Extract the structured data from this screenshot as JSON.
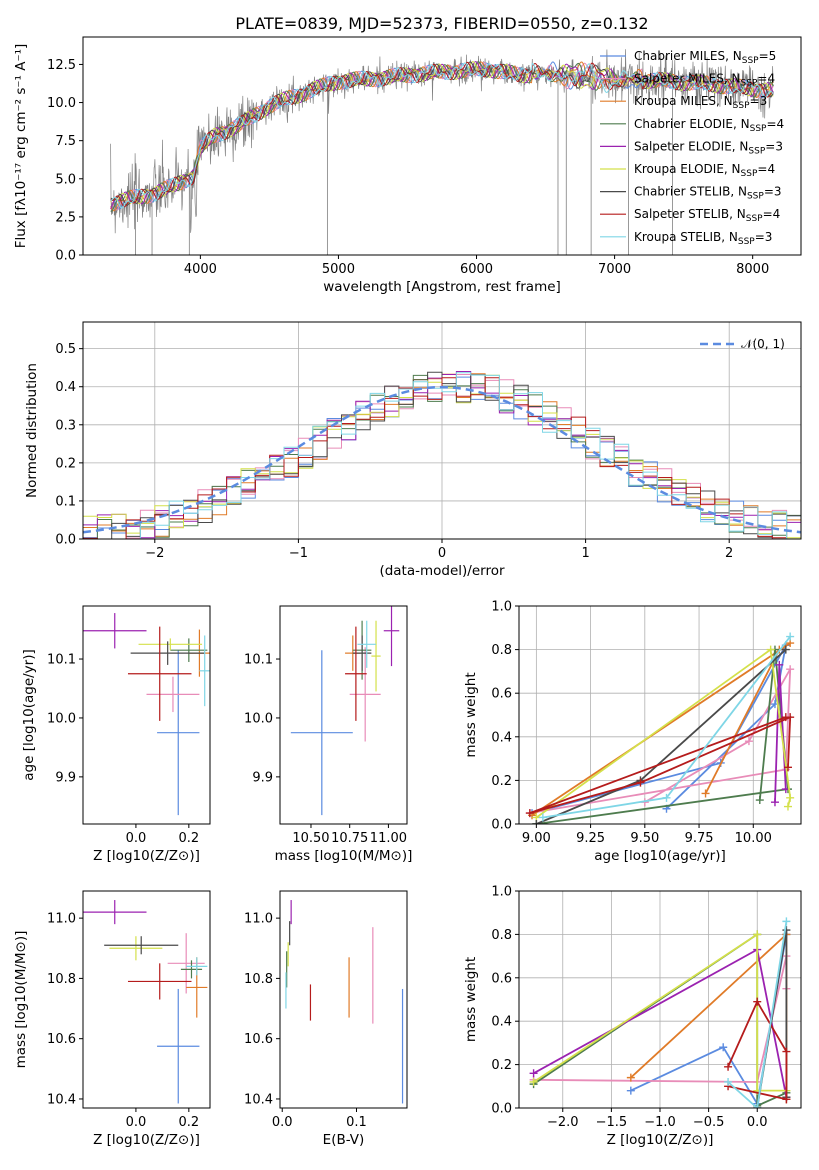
{
  "chart_data": [
    {
      "type": "line",
      "title": "PLATE=0839, MJD=52373, FIBERID=0550, z=0.132",
      "xlabel": "wavelength [Angstrom, rest frame]",
      "ylabel": "Flux [fλ10⁻¹⁷ erg cm⁻² s⁻¹ A⁻¹]",
      "xlim": [
        3150,
        8350
      ],
      "ylim": [
        0,
        14.3
      ],
      "xticks": [
        4000,
        5000,
        6000,
        7000,
        8000
      ],
      "yticks": [
        0.0,
        2.5,
        5.0,
        7.5,
        10.0,
        12.5
      ],
      "grid": false,
      "legend": "top-right",
      "data_color": "#808080",
      "series": [
        {
          "name": "Chabrier MILES, N_SSP=5",
          "color": "#5b8be0"
        },
        {
          "name": "Salpeter MILES, N_SSP=4",
          "color": "#e88cb8"
        },
        {
          "name": "Kroupa MILES, N_SSP=3",
          "color": "#e07b28"
        },
        {
          "name": "Chabrier ELODIE, N_SSP=4",
          "color": "#4e7c4e"
        },
        {
          "name": "Salpeter ELODIE, N_SSP=3",
          "color": "#9b22b0"
        },
        {
          "name": "Kroupa ELODIE, N_SSP=4",
          "color": "#d4e04a"
        },
        {
          "name": "Chabrier STELIB, N_SSP=3",
          "color": "#4a4a4a"
        },
        {
          "name": "Salpeter STELIB, N_SSP=4",
          "color": "#b51c1c"
        },
        {
          "name": "Kroupa STELIB, N_SSP=3",
          "color": "#7fd6e6"
        }
      ],
      "continuum": {
        "x": [
          3350,
          3500,
          3650,
          3800,
          3950,
          4000,
          4100,
          4300,
          4500,
          4800,
          5000,
          5300,
          5600,
          5900,
          6100,
          6300,
          6500,
          6700,
          6900,
          7100,
          7400,
          7700,
          8000,
          8150
        ],
        "y": [
          3.4,
          3.7,
          4.0,
          4.5,
          5.2,
          7.0,
          7.8,
          8.6,
          9.8,
          10.8,
          11.4,
          11.6,
          11.9,
          12.1,
          12.2,
          11.8,
          11.9,
          11.8,
          11.6,
          11.5,
          11.4,
          11.2,
          10.9,
          10.8
        ]
      },
      "dips": [
        3530,
        3650,
        3920,
        4920,
        6590,
        6650,
        6830,
        7100,
        7420
      ]
    },
    {
      "type": "bar",
      "ylabel": "Normed distribution",
      "xlabel": "(data-model)/error",
      "xlim": [
        -2.5,
        2.5
      ],
      "ylim": [
        0,
        0.57
      ],
      "xticks": [
        -2,
        -1,
        0,
        1,
        2
      ],
      "yticks": [
        0.0,
        0.1,
        0.2,
        0.3,
        0.4,
        0.5
      ],
      "grid": true,
      "legend": "top-right",
      "reference": {
        "name": "𝒩(0, 1)",
        "mu": 0,
        "sigma": 1,
        "color": "#5b8be0"
      }
    },
    {
      "type": "scatter",
      "xlabel": "Z [log10(Z/Z⊙)]",
      "ylabel": "age  [log10(age/yr)]",
      "xlim": [
        -0.2,
        0.28
      ],
      "ylim": [
        9.82,
        10.19
      ],
      "xticks": [
        0.0,
        0.2
      ],
      "yticks": [
        9.9,
        10.0,
        10.1
      ],
      "points": [
        {
          "x": 0.16,
          "y": 9.975,
          "xe": 0.08,
          "ye": 0.14,
          "c": "#5b8be0"
        },
        {
          "x": 0.14,
          "y": 10.04,
          "xe": 0.1,
          "ye": 0.03,
          "c": "#e88cb8"
        },
        {
          "x": 0.24,
          "y": 10.11,
          "xe": 0.04,
          "ye": 0.04,
          "c": "#e07b28"
        },
        {
          "x": 0.2,
          "y": 10.115,
          "xe": 0.07,
          "ye": 0.02,
          "c": "#4e7c4e"
        },
        {
          "x": -0.08,
          "y": 10.148,
          "xe": 0.12,
          "ye": 0.03,
          "c": "#9b22b0"
        },
        {
          "x": 0.13,
          "y": 10.125,
          "xe": 0.12,
          "ye": 0.01,
          "c": "#d4e04a"
        },
        {
          "x": 0.12,
          "y": 10.11,
          "xe": 0.14,
          "ye": 0.02,
          "c": "#4a4a4a"
        },
        {
          "x": 0.09,
          "y": 10.075,
          "xe": 0.12,
          "ye": 0.08,
          "c": "#b51c1c"
        },
        {
          "x": 0.26,
          "y": 10.08,
          "xe": 0.02,
          "ye": 0.06,
          "c": "#7fd6e6"
        }
      ]
    },
    {
      "type": "scatter",
      "xlabel": "mass [log10(M/M⊙)]",
      "ylabel": "",
      "xlim": [
        10.3,
        11.12
      ],
      "ylim": [
        9.82,
        10.19
      ],
      "xticks": [
        10.5,
        10.75,
        11.0
      ],
      "yticks": [
        9.9,
        10.0,
        10.1
      ],
      "points": [
        {
          "x": 10.57,
          "y": 9.975,
          "xe": 0.2,
          "ye": 0.14,
          "c": "#5b8be0"
        },
        {
          "x": 10.85,
          "y": 10.04,
          "xe": 0.1,
          "ye": 0.08,
          "c": "#e88cb8"
        },
        {
          "x": 10.77,
          "y": 10.11,
          "xe": 0.05,
          "ye": 0.03,
          "c": "#e07b28"
        },
        {
          "x": 10.83,
          "y": 10.115,
          "xe": 0.06,
          "ye": 0.05,
          "c": "#4e7c4e"
        },
        {
          "x": 11.02,
          "y": 10.148,
          "xe": 0.05,
          "ye": 0.06,
          "c": "#9b22b0"
        },
        {
          "x": 10.92,
          "y": 10.105,
          "xe": 0.03,
          "ye": 0.06,
          "c": "#d4e04a"
        },
        {
          "x": 10.83,
          "y": 10.11,
          "xe": 0.06,
          "ye": 0.03,
          "c": "#4a4a4a"
        },
        {
          "x": 10.79,
          "y": 10.075,
          "xe": 0.07,
          "ye": 0.08,
          "c": "#b51c1c"
        },
        {
          "x": 10.86,
          "y": 10.125,
          "xe": 0.06,
          "ye": 0.04,
          "c": "#7fd6e6"
        }
      ]
    },
    {
      "type": "line",
      "xlabel": "age  [log10(age/yr)]",
      "ylabel": "mass weight",
      "xlim": [
        8.92,
        10.22
      ],
      "ylim": [
        0.0,
        1.0
      ],
      "xticks": [
        9.0,
        9.25,
        9.5,
        9.75,
        10.0
      ],
      "yticks": [
        0.0,
        0.2,
        0.4,
        0.6,
        0.8,
        1.0
      ],
      "grid": true,
      "series": [
        {
          "x": [
            9.6,
            10.1,
            10.15,
            9.85,
            8.98
          ],
          "y": [
            0.07,
            0.55,
            0.82,
            0.28,
            0.05
          ],
          "c": "#5b8be0"
        },
        {
          "x": [
            9.5,
            9.98,
            10.17,
            10.15,
            8.97
          ],
          "y": [
            0.1,
            0.38,
            0.71,
            0.25,
            0.05
          ],
          "c": "#e88cb8"
        },
        {
          "x": [
            9.78,
            10.12,
            10.17,
            8.98
          ],
          "y": [
            0.14,
            0.8,
            0.83,
            0.04
          ],
          "c": "#e07b28"
        },
        {
          "x": [
            10.03,
            10.1,
            10.16,
            9.0
          ],
          "y": [
            0.11,
            0.8,
            0.16,
            0.0
          ],
          "c": "#4e7c4e"
        },
        {
          "x": [
            10.1,
            10.12,
            10.15
          ],
          "y": [
            0.1,
            0.73,
            0.16
          ],
          "c": "#9b22b0"
        },
        {
          "x": [
            10.16,
            10.17,
            10.08,
            9.0
          ],
          "y": [
            0.08,
            0.12,
            0.8,
            0.03
          ],
          "c": "#d4e04a"
        },
        {
          "x": [
            10.15,
            9.48,
            9.0
          ],
          "y": [
            0.8,
            0.2,
            0.0
          ],
          "c": "#4a4a4a"
        },
        {
          "x": [
            10.16,
            10.17,
            9.48,
            8.97,
            10.15
          ],
          "y": [
            0.26,
            0.49,
            0.19,
            0.05,
            0.49
          ],
          "c": "#b51c1c"
        },
        {
          "x": [
            10.17,
            9.6,
            9.03
          ],
          "y": [
            0.86,
            0.12,
            0.03
          ],
          "c": "#7fd6e6"
        }
      ]
    },
    {
      "type": "scatter",
      "xlabel": "Z [log10(Z/Z⊙)]",
      "ylabel": "mass [log10(M/M⊙)]",
      "xlim": [
        -0.2,
        0.28
      ],
      "ylim": [
        10.37,
        11.09
      ],
      "xticks": [
        0.0,
        0.2
      ],
      "yticks": [
        10.4,
        10.6,
        10.8,
        11.0
      ],
      "points": [
        {
          "x": 0.16,
          "y": 10.575,
          "xe": 0.08,
          "ye": 0.19,
          "c": "#5b8be0"
        },
        {
          "x": 0.19,
          "y": 10.85,
          "xe": 0.07,
          "ye": 0.1,
          "c": "#e88cb8"
        },
        {
          "x": 0.23,
          "y": 10.77,
          "xe": 0.04,
          "ye": 0.1,
          "c": "#e07b28"
        },
        {
          "x": 0.21,
          "y": 10.83,
          "xe": 0.04,
          "ye": 0.03,
          "c": "#4e7c4e"
        },
        {
          "x": -0.08,
          "y": 11.02,
          "xe": 0.12,
          "ye": 0.04,
          "c": "#9b22b0"
        },
        {
          "x": 0.0,
          "y": 10.9,
          "xe": 0.1,
          "ye": 0.04,
          "c": "#d4e04a"
        },
        {
          "x": 0.02,
          "y": 10.91,
          "xe": 0.14,
          "ye": 0.03,
          "c": "#4a4a4a"
        },
        {
          "x": 0.09,
          "y": 10.79,
          "xe": 0.12,
          "ye": 0.06,
          "c": "#b51c1c"
        },
        {
          "x": 0.23,
          "y": 10.84,
          "xe": 0.04,
          "ye": 0.03,
          "c": "#7fd6e6"
        }
      ]
    },
    {
      "type": "scatter",
      "xlabel": "E(B-V)",
      "ylabel": "",
      "xlim": [
        -0.003,
        0.168
      ],
      "ylim": [
        10.37,
        11.09
      ],
      "xticks": [
        0.0,
        0.1
      ],
      "yticks": [
        10.4,
        10.6,
        10.8,
        11.0
      ],
      "points": [
        {
          "x": 0.162,
          "y": 10.575,
          "ye": 0.19,
          "c": "#5b8be0"
        },
        {
          "x": 0.122,
          "y": 10.81,
          "ye": 0.16,
          "c": "#e88cb8"
        },
        {
          "x": 0.09,
          "y": 10.77,
          "ye": 0.1,
          "c": "#e07b28"
        },
        {
          "x": 0.006,
          "y": 10.83,
          "ye": 0.06,
          "c": "#4e7c4e"
        },
        {
          "x": 0.012,
          "y": 11.02,
          "ye": 0.04,
          "c": "#9b22b0"
        },
        {
          "x": 0.008,
          "y": 10.88,
          "ye": 0.04,
          "c": "#d4e04a"
        },
        {
          "x": 0.01,
          "y": 10.95,
          "ye": 0.04,
          "c": "#4a4a4a"
        },
        {
          "x": 0.038,
          "y": 10.72,
          "ye": 0.06,
          "c": "#b51c1c"
        },
        {
          "x": 0.005,
          "y": 10.76,
          "ye": 0.06,
          "c": "#7fd6e6"
        }
      ]
    },
    {
      "type": "line",
      "xlabel": "Z [log10(Z/Z⊙)]",
      "ylabel": "mass weight",
      "xlim": [
        -2.45,
        0.45
      ],
      "ylim": [
        0.0,
        1.0
      ],
      "xticks": [
        -2.0,
        -1.5,
        -1.0,
        -0.5,
        0.0
      ],
      "yticks": [
        0.0,
        0.2,
        0.4,
        0.6,
        0.8,
        1.0
      ],
      "grid": true,
      "series": [
        {
          "x": [
            -1.3,
            -0.35,
            0.0,
            0.3
          ],
          "y": [
            0.08,
            0.28,
            0.02,
            0.8
          ],
          "c": "#5b8be0"
        },
        {
          "x": [
            -2.3,
            0.0,
            0.3,
            0.3
          ],
          "y": [
            0.13,
            0.12,
            0.7,
            0.55
          ],
          "c": "#e88cb8"
        },
        {
          "x": [
            -1.3,
            0.3,
            0.3
          ],
          "y": [
            0.14,
            0.8,
            0.04
          ],
          "c": "#e07b28"
        },
        {
          "x": [
            -2.3,
            0.0,
            0.0,
            0.3
          ],
          "y": [
            0.11,
            0.8,
            0.01,
            0.07
          ],
          "c": "#4e7c4e"
        },
        {
          "x": [
            -2.3,
            0.0,
            0.3
          ],
          "y": [
            0.16,
            0.73,
            0.05
          ],
          "c": "#9b22b0"
        },
        {
          "x": [
            -2.3,
            0.0,
            0.0,
            0.3
          ],
          "y": [
            0.12,
            0.8,
            0.08,
            0.08
          ],
          "c": "#d4e04a"
        },
        {
          "x": [
            0.0,
            0.3,
            0.3
          ],
          "y": [
            0.0,
            0.82,
            0.05
          ],
          "c": "#4a4a4a"
        },
        {
          "x": [
            -0.3,
            0.0,
            0.3,
            0.3,
            -0.3
          ],
          "y": [
            0.19,
            0.49,
            0.26,
            0.04,
            0.1
          ],
          "c": "#b51c1c"
        },
        {
          "x": [
            -0.3,
            0.0,
            0.3
          ],
          "y": [
            0.12,
            0.0,
            0.86
          ],
          "c": "#7fd6e6"
        }
      ]
    }
  ]
}
